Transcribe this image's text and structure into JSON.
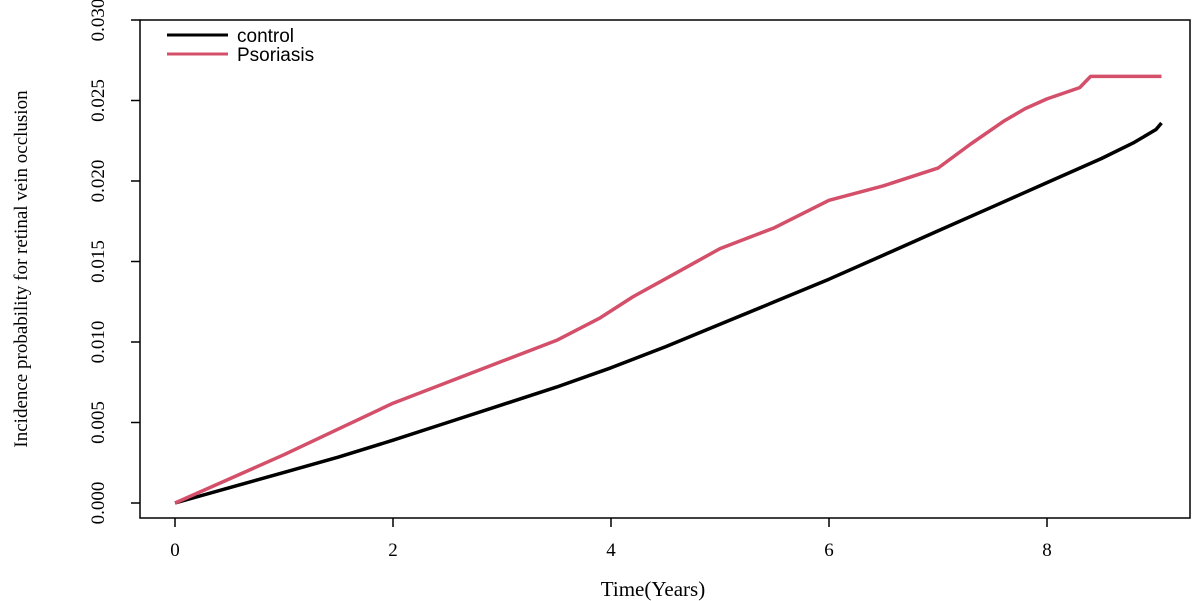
{
  "chart_data": {
    "type": "line",
    "title": "",
    "xlabel": "Time(Years)",
    "ylabel": "Incidence probability for retinal vein occlusion",
    "xlim": [
      0,
      9.3
    ],
    "ylim": [
      0,
      0.03
    ],
    "x_ticks": [
      "0",
      "2",
      "4",
      "6",
      "8"
    ],
    "y_ticks": [
      "0.000",
      "0.005",
      "0.010",
      "0.015",
      "0.020",
      "0.025",
      "0.030"
    ],
    "legend_position": "top-left",
    "grid": false,
    "series": [
      {
        "name": "control",
        "color": "#000000",
        "x": [
          0,
          0.5,
          1.0,
          1.5,
          2.0,
          2.5,
          3.0,
          3.5,
          4.0,
          4.5,
          5.0,
          5.5,
          6.0,
          6.5,
          7.0,
          7.5,
          8.0,
          8.5,
          8.8,
          9.0,
          9.05
        ],
        "y": [
          0,
          0.00095,
          0.0019,
          0.00285,
          0.0039,
          0.005,
          0.0061,
          0.0072,
          0.0084,
          0.0097,
          0.0111,
          0.0125,
          0.0139,
          0.0154,
          0.0169,
          0.0184,
          0.0199,
          0.0214,
          0.0224,
          0.0232,
          0.0236
        ]
      },
      {
        "name": "Psoriasis",
        "color": "#d44f6a",
        "x": [
          0,
          0.5,
          1.0,
          1.5,
          2.0,
          2.5,
          3.0,
          3.5,
          3.9,
          4.2,
          4.6,
          5.0,
          5.5,
          6.0,
          6.5,
          7.0,
          7.3,
          7.6,
          7.8,
          8.0,
          8.3,
          8.4,
          9.05
        ],
        "y": [
          0,
          0.0015,
          0.003,
          0.0046,
          0.0062,
          0.0075,
          0.0088,
          0.0101,
          0.0115,
          0.0128,
          0.0143,
          0.0158,
          0.0171,
          0.0188,
          0.0197,
          0.0208,
          0.0223,
          0.0237,
          0.0245,
          0.0251,
          0.0258,
          0.0265,
          0.0265
        ]
      }
    ]
  }
}
